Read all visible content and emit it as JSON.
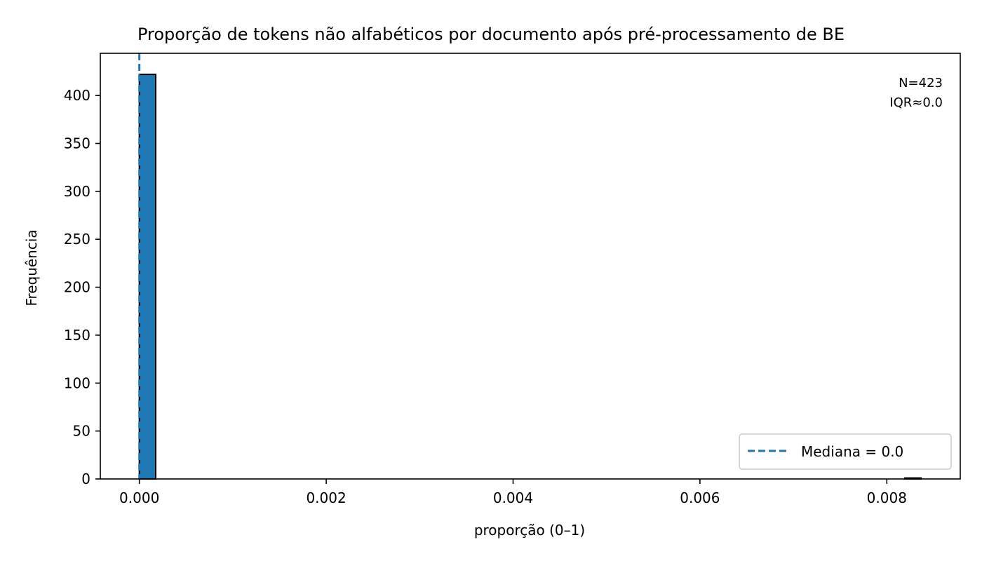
{
  "chart_data": {
    "type": "bar",
    "title": "Proporção de tokens não alfabéticos por documento após pré-processamento de BE",
    "xlabel": "proporção (0–1)",
    "ylabel": "Frequência",
    "xlim": [
      -0.000418,
      0.008786
    ],
    "ylim": [
      0,
      444
    ],
    "xticks": [
      0.0,
      0.002,
      0.004,
      0.006,
      0.008
    ],
    "xtick_labels": [
      "0.000",
      "0.002",
      "0.004",
      "0.006",
      "0.008"
    ],
    "yticks": [
      0,
      50,
      100,
      150,
      200,
      250,
      300,
      350,
      400
    ],
    "ytick_labels": [
      "0",
      "50",
      "100",
      "150",
      "200",
      "250",
      "300",
      "350",
      "400"
    ],
    "bins": [
      {
        "x0": 0.0,
        "x1": 0.000175,
        "count": 422
      },
      {
        "x0": 0.008192,
        "x1": 0.008367,
        "count": 1
      }
    ],
    "median_line": {
      "x": 0.0,
      "label": "Mediana = 0.0",
      "color": "#1f77b4",
      "style": "dashed"
    },
    "annotation": [
      "N=423",
      "IQR≈0.0"
    ],
    "legend_position": "lower right",
    "grid": false,
    "bar_color": "#1f77b4",
    "bar_edge_color": "#000000"
  }
}
